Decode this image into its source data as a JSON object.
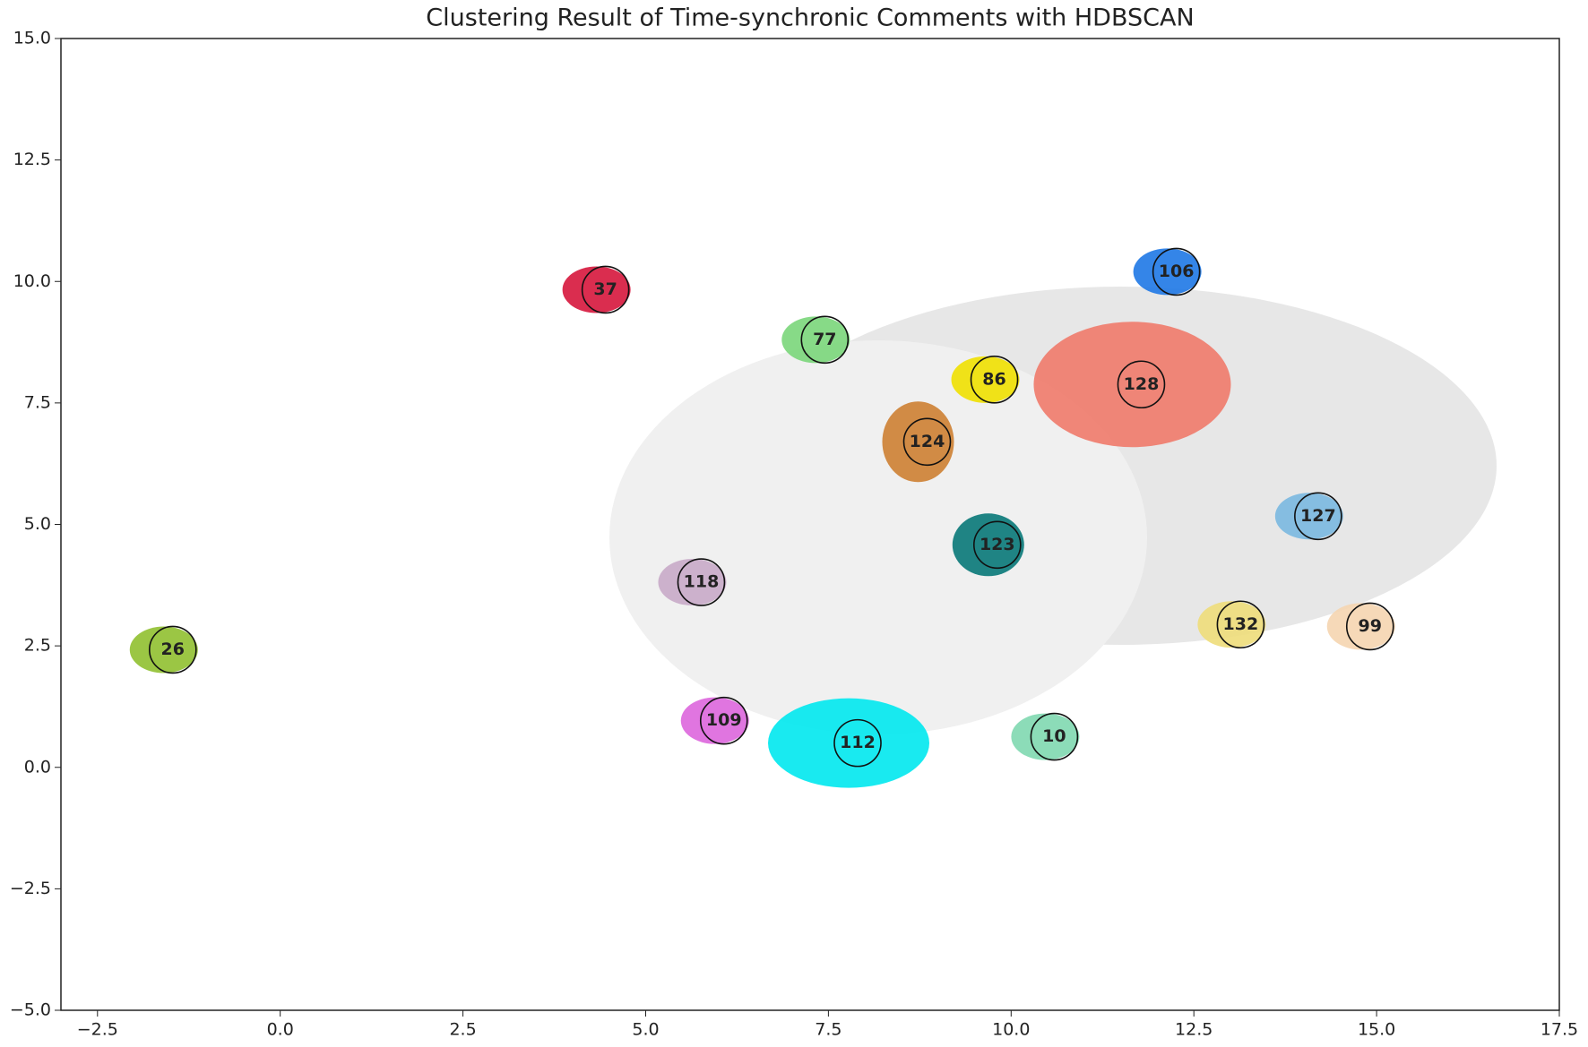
{
  "chart_data": {
    "type": "scatter",
    "title": "Clustering Result of Time-synchronic Comments with HDBSCAN",
    "xlim": [
      -3.0,
      17.5
    ],
    "ylim": [
      -5.0,
      15.0
    ],
    "xticks": [
      {
        "value": -2.5,
        "label": "−2.5"
      },
      {
        "value": 0,
        "label": "0.0"
      },
      2.5,
      {
        "value": 5,
        "label": "5.0"
      },
      7.5,
      {
        "value": 10,
        "label": "10.0"
      },
      12.5,
      {
        "value": 15,
        "label": "15.0"
      },
      17.5
    ],
    "yticks": [
      {
        "value": -5,
        "label": "−5.0"
      },
      {
        "value": -2.5,
        "label": "−2.5"
      },
      {
        "value": 0,
        "label": "0.0"
      },
      2.5,
      {
        "value": 5,
        "label": "5.0"
      },
      7.5,
      {
        "value": 10,
        "label": "10.0"
      },
      12.5,
      {
        "value": 15,
        "label": "15.0"
      }
    ],
    "series": [
      {
        "name": "37",
        "color": "#d6163c",
        "x": [
          4.45
        ],
        "values": [
          9.83
        ]
      },
      {
        "name": "106",
        "color": "#1e78e6",
        "x": [
          12.26
        ],
        "values": [
          10.2
        ]
      },
      {
        "name": "77",
        "color": "#7ad67a",
        "x": [
          7.45
        ],
        "values": [
          8.8
        ]
      },
      {
        "name": "86",
        "color": "#f0e000",
        "x": [
          9.77
        ],
        "values": [
          7.98
        ]
      },
      {
        "name": "128",
        "color": "#f07a6a",
        "x": [
          11.78
        ],
        "values": [
          7.88
        ]
      },
      {
        "name": "124",
        "color": "#cd8032",
        "x": [
          8.85
        ],
        "values": [
          6.7
        ]
      },
      {
        "name": "127",
        "color": "#7ab8e0",
        "x": [
          14.2
        ],
        "values": [
          5.17
        ]
      },
      {
        "name": "123",
        "color": "#087878",
        "x": [
          9.81
        ],
        "values": [
          4.58
        ]
      },
      {
        "name": "118",
        "color": "#c8aac8",
        "x": [
          5.76
        ],
        "values": [
          3.81
        ]
      },
      {
        "name": "26",
        "color": "#90c030",
        "x": [
          -1.47
        ],
        "values": [
          2.42
        ]
      },
      {
        "name": "132",
        "color": "#eedd7a",
        "x": [
          13.14
        ],
        "values": [
          2.94
        ]
      },
      {
        "name": "99",
        "color": "#f5d5b0",
        "x": [
          14.91
        ],
        "values": [
          2.9
        ]
      },
      {
        "name": "109",
        "color": "#dd66dd",
        "x": [
          6.07
        ],
        "values": [
          0.96
        ]
      },
      {
        "name": "112",
        "color": "#00e8ee",
        "x": [
          7.9
        ],
        "values": [
          0.5
        ]
      },
      {
        "name": "10",
        "color": "#80d8b0",
        "x": [
          10.59
        ],
        "values": [
          0.63
        ]
      }
    ]
  }
}
